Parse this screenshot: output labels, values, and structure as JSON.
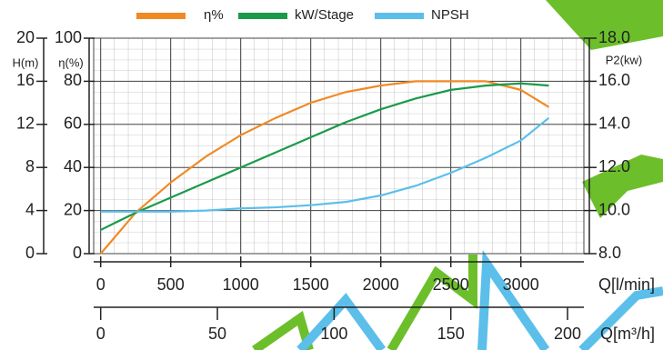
{
  "chart_data": {
    "type": "line",
    "legend_position": "top",
    "x_label": "Q[l/min]",
    "x2_label": "Q[m³/h]",
    "x": [
      0,
      250,
      500,
      750,
      1000,
      1250,
      1500,
      1750,
      2000,
      2250,
      2500,
      2750,
      3000,
      3200
    ],
    "xlim": [
      -50,
      3450
    ],
    "xticks": [
      0,
      500,
      1000,
      1500,
      2000,
      2500,
      3000
    ],
    "x2lim": [
      -3,
      207
    ],
    "x2ticks": [
      0,
      50,
      100,
      150,
      200
    ],
    "ylabel": "η(%)",
    "ylim": [
      0,
      100
    ],
    "yticks": [
      0,
      20,
      40,
      60,
      80,
      100
    ],
    "hlabel": "H(m)",
    "hlim": [
      0,
      20
    ],
    "hticks": [
      0,
      4,
      8,
      12,
      16,
      20
    ],
    "y2label": "P2(kw)",
    "y2lim": [
      8,
      18
    ],
    "y2ticks": [
      {
        "value": 8,
        "label": "8.0"
      },
      {
        "value": 10,
        "label": "10.0"
      },
      {
        "value": 12,
        "label": "12.0"
      },
      {
        "value": 14,
        "label": "14.0"
      },
      {
        "value": 16,
        "label": "16.0"
      },
      {
        "value": 18,
        "label": "18.0"
      }
    ],
    "grid": true,
    "series": [
      {
        "name": "η%",
        "color": "#f08a24",
        "axis": "y",
        "values": [
          0,
          19,
          33,
          45,
          55,
          63,
          70,
          75,
          78,
          80,
          80,
          80,
          76,
          68
        ]
      },
      {
        "name": "kW/Stage",
        "color": "#1a9a4a",
        "axis": "y2",
        "values": [
          9.1,
          9.9,
          10.6,
          11.3,
          12.0,
          12.7,
          13.4,
          14.1,
          14.7,
          15.2,
          15.6,
          15.8,
          15.9,
          15.8
        ]
      },
      {
        "name": "NPSH",
        "color": "#5bbfea",
        "axis": "h",
        "values": [
          3.9,
          3.9,
          3.9,
          4.0,
          4.2,
          4.3,
          4.5,
          4.8,
          5.4,
          6.3,
          7.5,
          8.9,
          10.5,
          12.6
        ]
      }
    ]
  }
}
